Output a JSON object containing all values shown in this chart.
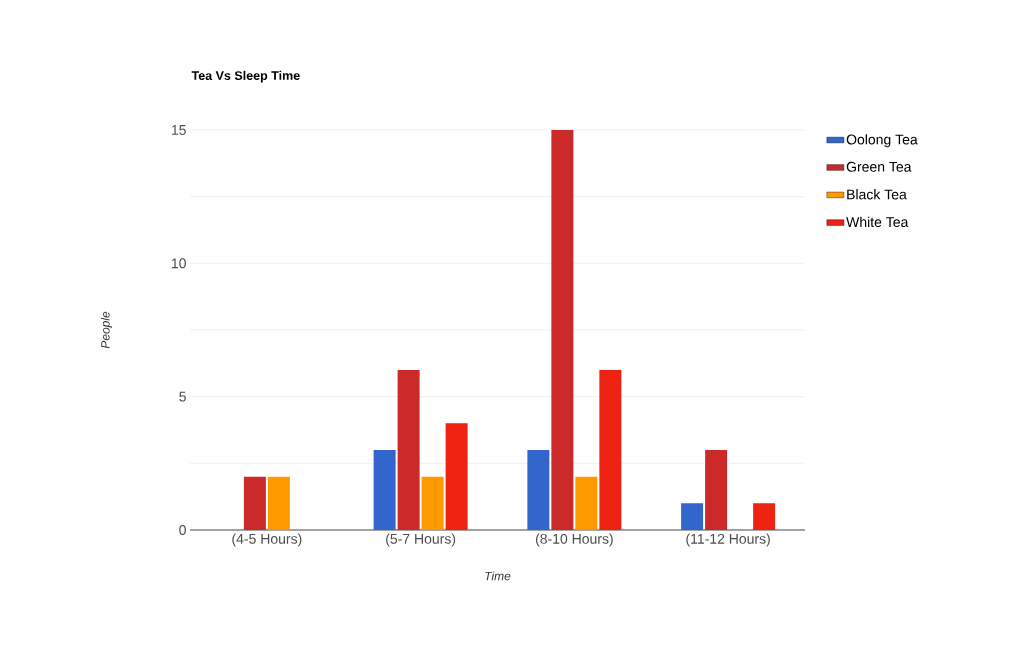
{
  "chart_data": {
    "type": "bar",
    "title": "Tea Vs Sleep Time",
    "xlabel": "Time",
    "ylabel": "People",
    "categories": [
      "(4-5 Hours)",
      "(5-7 Hours)",
      "(8-10 Hours)",
      "(11-12 Hours)"
    ],
    "series": [
      {
        "name": "Oolong Tea",
        "color": "#3366cc",
        "values": [
          0,
          3,
          3,
          1
        ]
      },
      {
        "name": "Green Tea",
        "color": "#cc2a2a",
        "values": [
          2,
          6,
          15,
          3
        ]
      },
      {
        "name": "Black Tea",
        "color": "#ff9900",
        "values": [
          2,
          2,
          2,
          0
        ]
      },
      {
        "name": "White Tea",
        "color": "#ee2211",
        "values": [
          0,
          4,
          6,
          1
        ]
      }
    ],
    "ylim": [
      0,
      15
    ],
    "yticks": [
      0,
      {
        "value": 2.5,
        "label": null
      },
      5,
      {
        "value": 7.5,
        "label": null
      },
      10,
      {
        "value": 12.5,
        "label": null
      },
      15
    ],
    "grid": "y",
    "legend": "top right"
  }
}
